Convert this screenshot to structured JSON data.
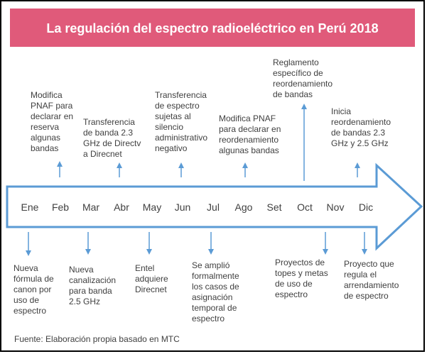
{
  "title": "La regulación del espectro radioeléctrico en Perú 2018",
  "months": [
    "Ene",
    "Feb",
    "Mar",
    "Abr",
    "May",
    "Jun",
    "Jul",
    "Ago",
    "Set",
    "Oct",
    "Nov",
    "Dic"
  ],
  "top_events": [
    {
      "lines": [
        "Modifica",
        "PNAF para",
        "declarar en",
        "reserva",
        "algunas",
        "bandas"
      ]
    },
    {
      "lines": [
        "Transferencia",
        "de banda 2.3",
        "GHz de Directv",
        "a Direcnet"
      ]
    },
    {
      "lines": [
        "Transferencia",
        "de espectro",
        "sujetas al",
        "silencio",
        "administrativo",
        "negativo"
      ]
    },
    {
      "lines": [
        "Modifica PNAF",
        "para declarar en",
        "reordenamiento",
        "algunas bandas"
      ]
    },
    {
      "lines": [
        "Reglamento",
        "específico de",
        "reordenamiento",
        "de bandas"
      ]
    },
    {
      "lines": [
        "Inicia",
        "reordenamiento",
        "de bandas 2.3",
        "GHz y 2.5 GHz"
      ]
    }
  ],
  "bottom_events": [
    {
      "lines": [
        "Nueva",
        "fórmula de",
        "canon por",
        "uso de",
        "espectro"
      ]
    },
    {
      "lines": [
        "Nueva",
        "canalización",
        "para banda",
        "2.5 GHz"
      ]
    },
    {
      "lines": [
        "Entel",
        "adquiere",
        "Direcnet"
      ]
    },
    {
      "lines": [
        "Se amplió",
        "formalmente",
        "los casos de",
        "asignación",
        "temporal de",
        "espectro"
      ]
    },
    {
      "lines": [
        "Proyectos de",
        "topes y metas",
        "de uso de",
        "espectro"
      ]
    },
    {
      "lines": [
        "Proyecto que",
        "regula el",
        "arrendamiento",
        "de espectro"
      ]
    }
  ],
  "source": "Fuente: Elaboración propia basado en MTC"
}
